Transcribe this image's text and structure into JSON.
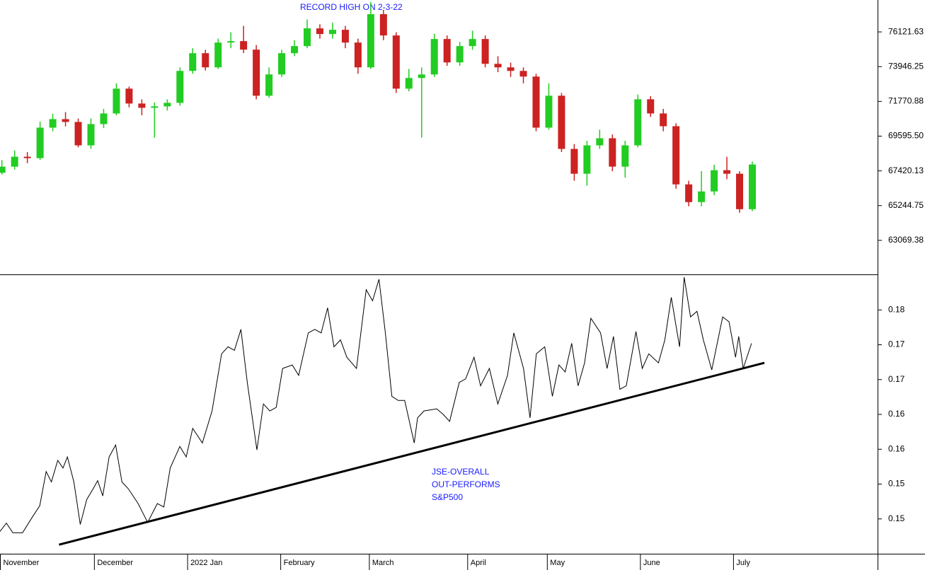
{
  "chart_data": [
    {
      "type": "candlestick",
      "annotation": "RECORD HIGH ON 2-3-22",
      "xlim": [
        -0.15,
        65.9
      ],
      "xticks": [
        {
          "value": -0.15,
          "label": "November"
        },
        {
          "value": 7.27,
          "label": "December"
        },
        {
          "value": 14.6,
          "label": "2022 Jan"
        },
        {
          "value": 21.92,
          "label": "February"
        },
        {
          "value": 28.89,
          "label": "March"
        },
        {
          "value": 36.62,
          "label": "April"
        },
        {
          "value": 42.88,
          "label": "May"
        },
        {
          "value": 50.2,
          "label": "June"
        },
        {
          "value": 57.52,
          "label": "July"
        }
      ],
      "ylim": [
        60938,
        78119
      ],
      "yticks": [
        63069.38,
        65244.75,
        67420.13,
        {
          "value": 69595.5,
          "label": "69595.50"
        },
        71770.88,
        73946.25,
        76121.63
      ],
      "up_color": "#22cc22",
      "down_color": "#cc2222",
      "open": [
        67300,
        67685,
        68307,
        68218,
        70127,
        70660,
        70483,
        69017,
        70349,
        71015,
        72569,
        71637,
        71370,
        71459,
        71681,
        73679,
        74789,
        73901,
        75455,
        75544,
        75011,
        72125,
        73457,
        74789,
        75233,
        76343,
        75988,
        76254,
        75455,
        73901,
        77231,
        75899,
        72569,
        73235,
        73457,
        75677,
        74212,
        75233,
        75677,
        74123,
        73901,
        73679,
        73324,
        70127,
        72125,
        68795,
        67241,
        69017,
        69461,
        67685,
        69017,
        71903,
        71015,
        70216,
        66575,
        65465,
        66131,
        67463,
        67241,
        65021
      ],
      "high": [
        68100,
        68700,
        68600,
        70500,
        71000,
        71100,
        70700,
        70700,
        71300,
        72900,
        72700,
        71900,
        71700,
        71900,
        73900,
        75100,
        75000,
        75700,
        76100,
        76500,
        75300,
        73900,
        75000,
        75600,
        76900,
        76600,
        76700,
        76500,
        75700,
        78000,
        77500,
        76100,
        73800,
        73900,
        76000,
        75900,
        75500,
        76200,
        75900,
        74600,
        74200,
        73900,
        73500,
        72900,
        72300,
        69100,
        69300,
        70000,
        69700,
        69300,
        72200,
        72100,
        71300,
        70400,
        66800,
        67400,
        67800,
        68300,
        67400,
        68000
      ],
      "low": [
        67200,
        67500,
        67900,
        68100,
        69900,
        70200,
        68900,
        68800,
        70100,
        70900,
        71400,
        70900,
        69500,
        71200,
        71500,
        73500,
        73700,
        73800,
        75100,
        74800,
        71900,
        72000,
        73300,
        74600,
        75100,
        75700,
        75700,
        75100,
        73500,
        73800,
        75600,
        72300,
        72400,
        69500,
        73300,
        74000,
        74000,
        75000,
        73900,
        73600,
        73300,
        72900,
        69900,
        70000,
        68600,
        66800,
        66500,
        68800,
        67400,
        67000,
        68900,
        70800,
        69900,
        66300,
        65200,
        65200,
        65900,
        66900,
        64800,
        64900
      ],
      "close": [
        67685,
        68307,
        68218,
        70127,
        70660,
        70483,
        69017,
        70349,
        71015,
        72569,
        71637,
        71370,
        71459,
        71681,
        73679,
        74789,
        73901,
        75455,
        75544,
        75011,
        72125,
        73457,
        74789,
        75233,
        76343,
        75988,
        76254,
        75455,
        73901,
        77231,
        75899,
        72569,
        73235,
        73457,
        75677,
        74212,
        75233,
        75677,
        74123,
        73901,
        73679,
        73324,
        70127,
        72125,
        68795,
        67241,
        69017,
        69461,
        67685,
        69017,
        71903,
        71015,
        70216,
        66575,
        65465,
        66131,
        67463,
        67241,
        65021,
        67818
      ]
    },
    {
      "type": "line",
      "annotation": [
        "JSE-OVERALL",
        "OUT-PERFORMS",
        "S&P500"
      ],
      "xlim": [
        -0.15,
        65.9
      ],
      "ylim": [
        0.143,
        0.1831
      ],
      "yticks": [
        {
          "value": 0.178,
          "label": "0.18"
        },
        {
          "value": 0.173,
          "label": "0.17"
        },
        {
          "value": 0.168,
          "label": "0.17"
        },
        {
          "value": 0.163,
          "label": "0.16"
        },
        {
          "value": 0.158,
          "label": "0.16"
        },
        {
          "value": 0.153,
          "label": "0.15"
        },
        {
          "value": 0.148,
          "label": "0.15"
        }
      ],
      "color": "#000000",
      "x": [
        -0.15,
        0.35,
        0.86,
        1.62,
        2.37,
        2.98,
        3.48,
        3.89,
        4.39,
        4.8,
        5.15,
        5.66,
        6.16,
        6.67,
        7.17,
        7.53,
        7.93,
        8.43,
        8.94,
        9.44,
        9.95,
        10.71,
        11.46,
        12.22,
        12.73,
        13.23,
        13.99,
        14.49,
        15.0,
        15.76,
        16.52,
        17.27,
        17.78,
        18.28,
        18.79,
        19.29,
        20.05,
        20.56,
        21.06,
        21.57,
        22.07,
        22.83,
        23.33,
        24.09,
        24.6,
        25.1,
        25.61,
        26.11,
        26.62,
        27.12,
        27.88,
        28.64,
        29.14,
        29.65,
        30.15,
        30.66,
        31.16,
        31.67,
        32.42,
        32.68,
        33.18,
        34.19,
        34.7,
        35.2,
        35.96,
        36.46,
        37.12,
        37.63,
        38.33,
        38.99,
        39.75,
        40.25,
        41.01,
        41.52,
        42.02,
        42.68,
        43.28,
        43.79,
        44.29,
        44.8,
        45.3,
        45.81,
        46.31,
        47.07,
        47.58,
        48.08,
        48.59,
        49.09,
        49.85,
        50.35,
        50.86,
        51.62,
        52.12,
        52.63,
        53.28,
        53.64,
        54.14,
        54.65,
        55.15,
        55.81,
        56.67,
        57.17,
        57.68,
        57.93,
        58.28,
        58.94
      ],
      "values": [
        0.1462,
        0.1474,
        0.146,
        0.146,
        0.1482,
        0.1499,
        0.1548,
        0.1533,
        0.1564,
        0.1553,
        0.1569,
        0.1533,
        0.1472,
        0.1508,
        0.1523,
        0.1535,
        0.1513,
        0.1569,
        0.1586,
        0.1533,
        0.1523,
        0.1502,
        0.1475,
        0.1502,
        0.1497,
        0.1553,
        0.1584,
        0.1569,
        0.161,
        0.1589,
        0.1635,
        0.1717,
        0.1727,
        0.1722,
        0.1752,
        0.1676,
        0.1579,
        0.1645,
        0.1635,
        0.164,
        0.1696,
        0.1701,
        0.1686,
        0.1747,
        0.1752,
        0.1747,
        0.1783,
        0.1727,
        0.1737,
        0.1712,
        0.1696,
        0.1809,
        0.1793,
        0.1824,
        0.1747,
        0.1656,
        0.165,
        0.165,
        0.1589,
        0.1625,
        0.1635,
        0.1638,
        0.163,
        0.162,
        0.1676,
        0.1681,
        0.1712,
        0.1671,
        0.1696,
        0.1645,
        0.1686,
        0.1747,
        0.1696,
        0.1625,
        0.1717,
        0.1727,
        0.1656,
        0.1701,
        0.1691,
        0.1732,
        0.1671,
        0.1704,
        0.1768,
        0.1747,
        0.1696,
        0.1742,
        0.1666,
        0.1671,
        0.1749,
        0.1696,
        0.1717,
        0.1704,
        0.1737,
        0.1798,
        0.1727,
        0.1827,
        0.177,
        0.1778,
        0.1737,
        0.1694,
        0.177,
        0.1763,
        0.1712,
        0.1742,
        0.1696,
        0.1732
      ],
      "trendline": {
        "x": [
          4.49,
          59.95
        ],
        "values": [
          0.1443,
          0.1704
        ]
      }
    }
  ]
}
